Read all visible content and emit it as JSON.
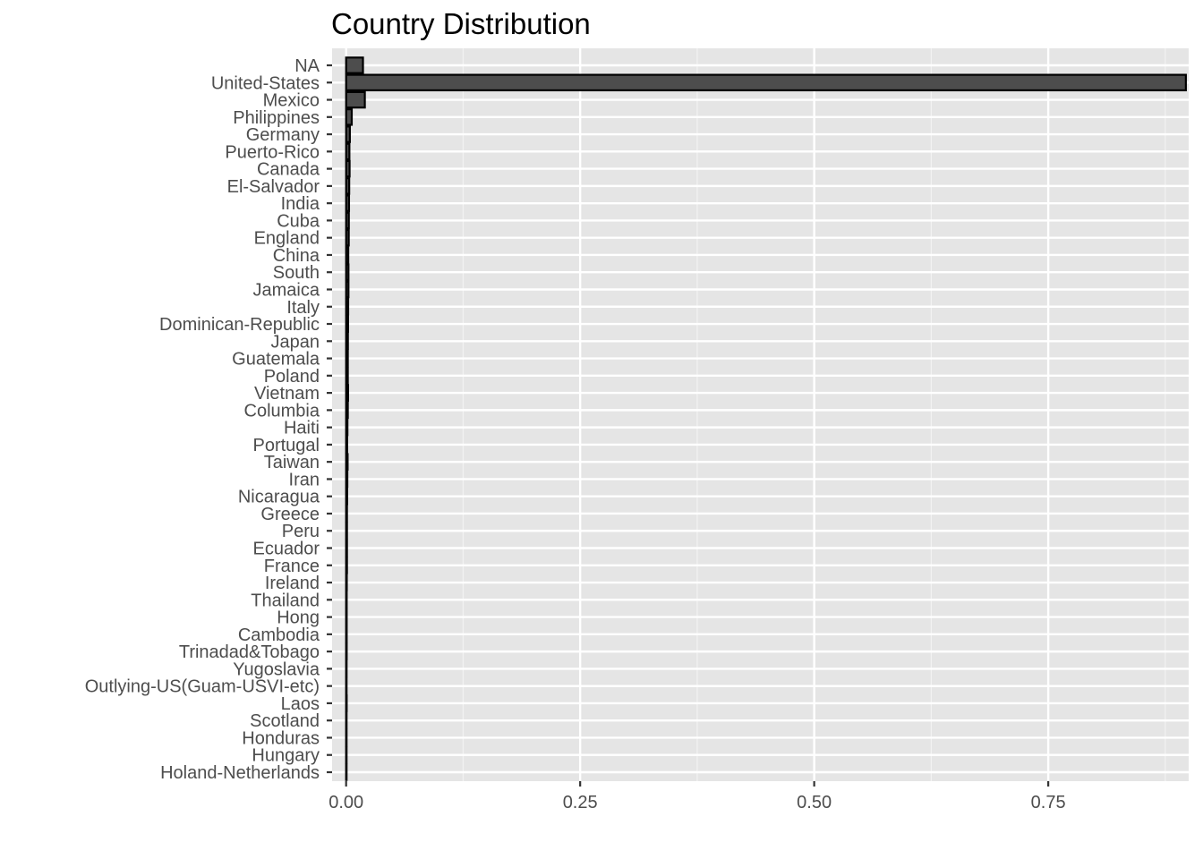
{
  "chart_data": {
    "type": "bar",
    "orientation": "horizontal",
    "title": "Country Distribution",
    "xlabel": "",
    "ylabel": "",
    "xlim": [
      -0.015,
      0.9
    ],
    "x_ticks": [
      0.0,
      0.25,
      0.5,
      0.75
    ],
    "x_tick_labels": [
      "0.00",
      "0.25",
      "0.50",
      "0.75"
    ],
    "grid": true,
    "legend": "none",
    "colors": {
      "panel": "#e5e5e5",
      "grid_major": "#ffffff",
      "grid_minor": "#f2f2f2",
      "bar_fill": "#4d4d4d",
      "bar_stroke": "#000000",
      "tick_text": "#4d4d4d",
      "title_text": "#000000"
    },
    "categories": [
      "NA",
      "United-States",
      "Mexico",
      "Philippines",
      "Germany",
      "Puerto-Rico",
      "Canada",
      "El-Salvador",
      "India",
      "Cuba",
      "England",
      "China",
      "South",
      "Jamaica",
      "Italy",
      "Dominican-Republic",
      "Japan",
      "Guatemala",
      "Poland",
      "Vietnam",
      "Columbia",
      "Haiti",
      "Portugal",
      "Taiwan",
      "Iran",
      "Nicaragua",
      "Greece",
      "Peru",
      "Ecuador",
      "France",
      "Ireland",
      "Thailand",
      "Hong",
      "Cambodia",
      "Trinadad&Tobago",
      "Yugoslavia",
      "Outlying-US(Guam-USVI-etc)",
      "Laos",
      "Scotland",
      "Honduras",
      "Hungary",
      "Holand-Netherlands"
    ],
    "values": [
      0.018,
      0.897,
      0.02,
      0.006,
      0.004,
      0.0035,
      0.0037,
      0.0033,
      0.0031,
      0.0029,
      0.0028,
      0.0023,
      0.0025,
      0.0025,
      0.0022,
      0.0021,
      0.0019,
      0.0018,
      0.0018,
      0.0021,
      0.0018,
      0.0014,
      0.0011,
      0.0016,
      0.0013,
      0.0011,
      0.0009,
      0.0009,
      0.0009,
      0.0009,
      0.0007,
      0.0006,
      0.0006,
      0.0006,
      0.0006,
      0.0005,
      0.0004,
      0.0006,
      0.0004,
      0.0004,
      0.0004,
      3e-05
    ]
  }
}
